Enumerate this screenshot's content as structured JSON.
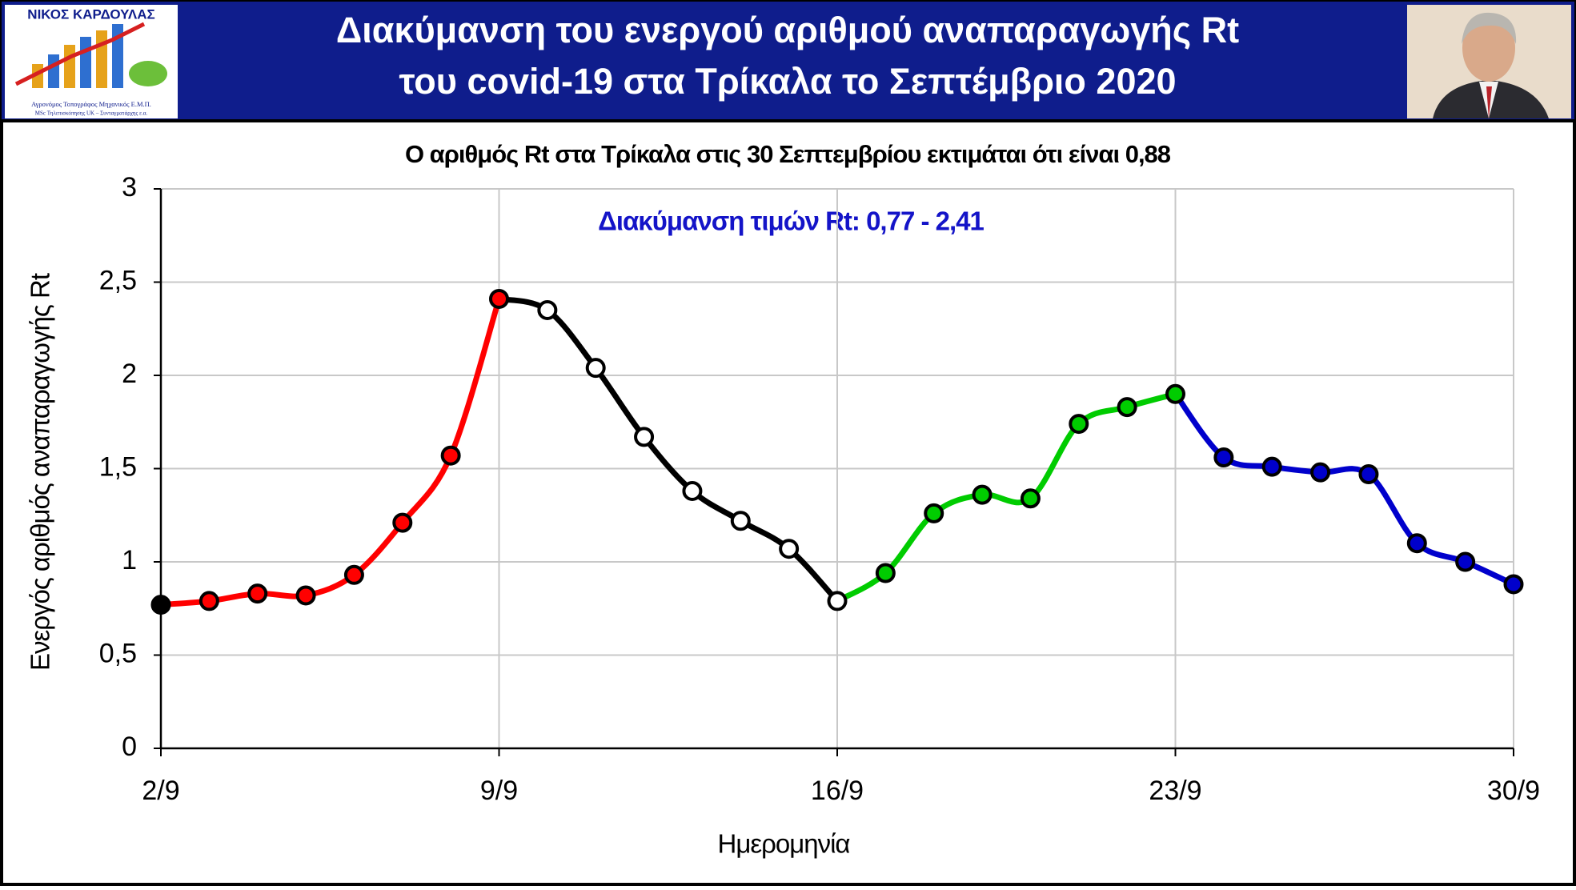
{
  "header": {
    "author": "ΝΙΚΟΣ ΚΑΡΔΟΥΛΑΣ",
    "author_line1": "Αγρονόμος Τοπογράφος Μηχανικός Ε.Μ.Π.",
    "author_line2": "MSc Τηλεπισκόπησης UK – Συνταγματάρχης ε.α.",
    "title_line1": "Διακύμανση του ενεργού αριθμού αναπαραγωγής Rt",
    "title_line2": "του covid-19 στα Τρίκαλα το Σεπτέμβριο 2020"
  },
  "chart_data": {
    "type": "line",
    "title": "Ο αριθμός Rt στα Τρίκαλα στις 30 Σεπτεμβρίου εκτιμάται ότι είναι 0,88",
    "annotation": "Διακύμανση τιμών Rt: 0,77 - 2,41",
    "x_label": "Ημερομηνία",
    "y_label": "Ενεργός αριθμός αναπαραγωγής Rt",
    "categories": [
      "2/9",
      null,
      null,
      null,
      null,
      null,
      null,
      "9/9",
      null,
      null,
      null,
      null,
      null,
      null,
      "16/9",
      null,
      null,
      null,
      null,
      null,
      null,
      "23/9",
      null,
      null,
      null,
      null,
      null,
      null,
      "30/9"
    ],
    "ylim": [
      0,
      3
    ],
    "yticks": [
      0,
      {
        "value": 0.5,
        "label": "0,5"
      },
      1,
      {
        "value": 1.5,
        "label": "1,5"
      },
      2,
      {
        "value": 2.5,
        "label": "2,5"
      },
      3
    ],
    "grid": true,
    "start_marker_color": "#000000",
    "series": [
      {
        "color": "#ff0000",
        "marker_color": "#ff0000",
        "values": [
          0.77,
          0.79,
          0.83,
          0.82,
          0.93,
          1.21,
          1.57,
          2.41,
          null,
          null,
          null,
          null,
          null,
          null,
          null,
          null,
          null,
          null,
          null,
          null,
          null,
          null,
          null,
          null,
          null,
          null,
          null,
          null,
          null
        ]
      },
      {
        "color": "#000000",
        "marker_color": "#ffffff",
        "values": [
          null,
          null,
          null,
          null,
          null,
          null,
          null,
          2.41,
          2.35,
          2.04,
          1.67,
          1.38,
          1.22,
          1.07,
          0.79,
          null,
          null,
          null,
          null,
          null,
          null,
          null,
          null,
          null,
          null,
          null,
          null,
          null,
          null
        ]
      },
      {
        "color": "#00cc00",
        "marker_color": "#00cc00",
        "values": [
          null,
          null,
          null,
          null,
          null,
          null,
          null,
          null,
          null,
          null,
          null,
          null,
          null,
          null,
          0.79,
          0.94,
          1.26,
          1.36,
          1.34,
          1.74,
          1.83,
          1.9,
          null,
          null,
          null,
          null,
          null,
          null,
          null
        ]
      },
      {
        "color": "#0000cc",
        "marker_color": "#0000cc",
        "values": [
          null,
          null,
          null,
          null,
          null,
          null,
          null,
          null,
          null,
          null,
          null,
          null,
          null,
          null,
          null,
          null,
          null,
          null,
          null,
          null,
          null,
          1.9,
          1.56,
          1.51,
          1.48,
          1.47,
          1.1,
          1.0,
          0.88
        ]
      }
    ]
  }
}
